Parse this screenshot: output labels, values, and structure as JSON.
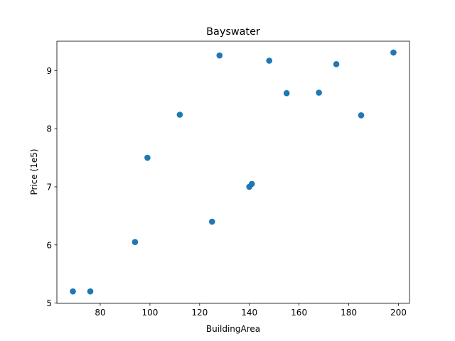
{
  "chart_data": {
    "type": "scatter",
    "title": "Bayswater",
    "xlabel": "BuildingArea",
    "ylabel": "Price (1e5)",
    "xlim": [
      62.55,
      204.45
    ],
    "ylim": [
      4.995,
      9.505
    ],
    "xticks": [
      80,
      100,
      120,
      140,
      160,
      180,
      200
    ],
    "yticks": [
      5,
      6,
      7,
      8,
      9
    ],
    "grid": false,
    "marker_color": "#1f77b4",
    "points": [
      {
        "x": 69,
        "y": 5.2
      },
      {
        "x": 76,
        "y": 5.2
      },
      {
        "x": 94,
        "y": 6.05
      },
      {
        "x": 99,
        "y": 7.5
      },
      {
        "x": 112,
        "y": 8.24
      },
      {
        "x": 125,
        "y": 6.4
      },
      {
        "x": 128,
        "y": 9.26
      },
      {
        "x": 140,
        "y": 7.0
      },
      {
        "x": 141,
        "y": 7.05
      },
      {
        "x": 148,
        "y": 9.17
      },
      {
        "x": 155,
        "y": 8.61
      },
      {
        "x": 168,
        "y": 8.62
      },
      {
        "x": 175,
        "y": 9.11
      },
      {
        "x": 185,
        "y": 8.23
      },
      {
        "x": 198,
        "y": 9.31
      }
    ]
  }
}
